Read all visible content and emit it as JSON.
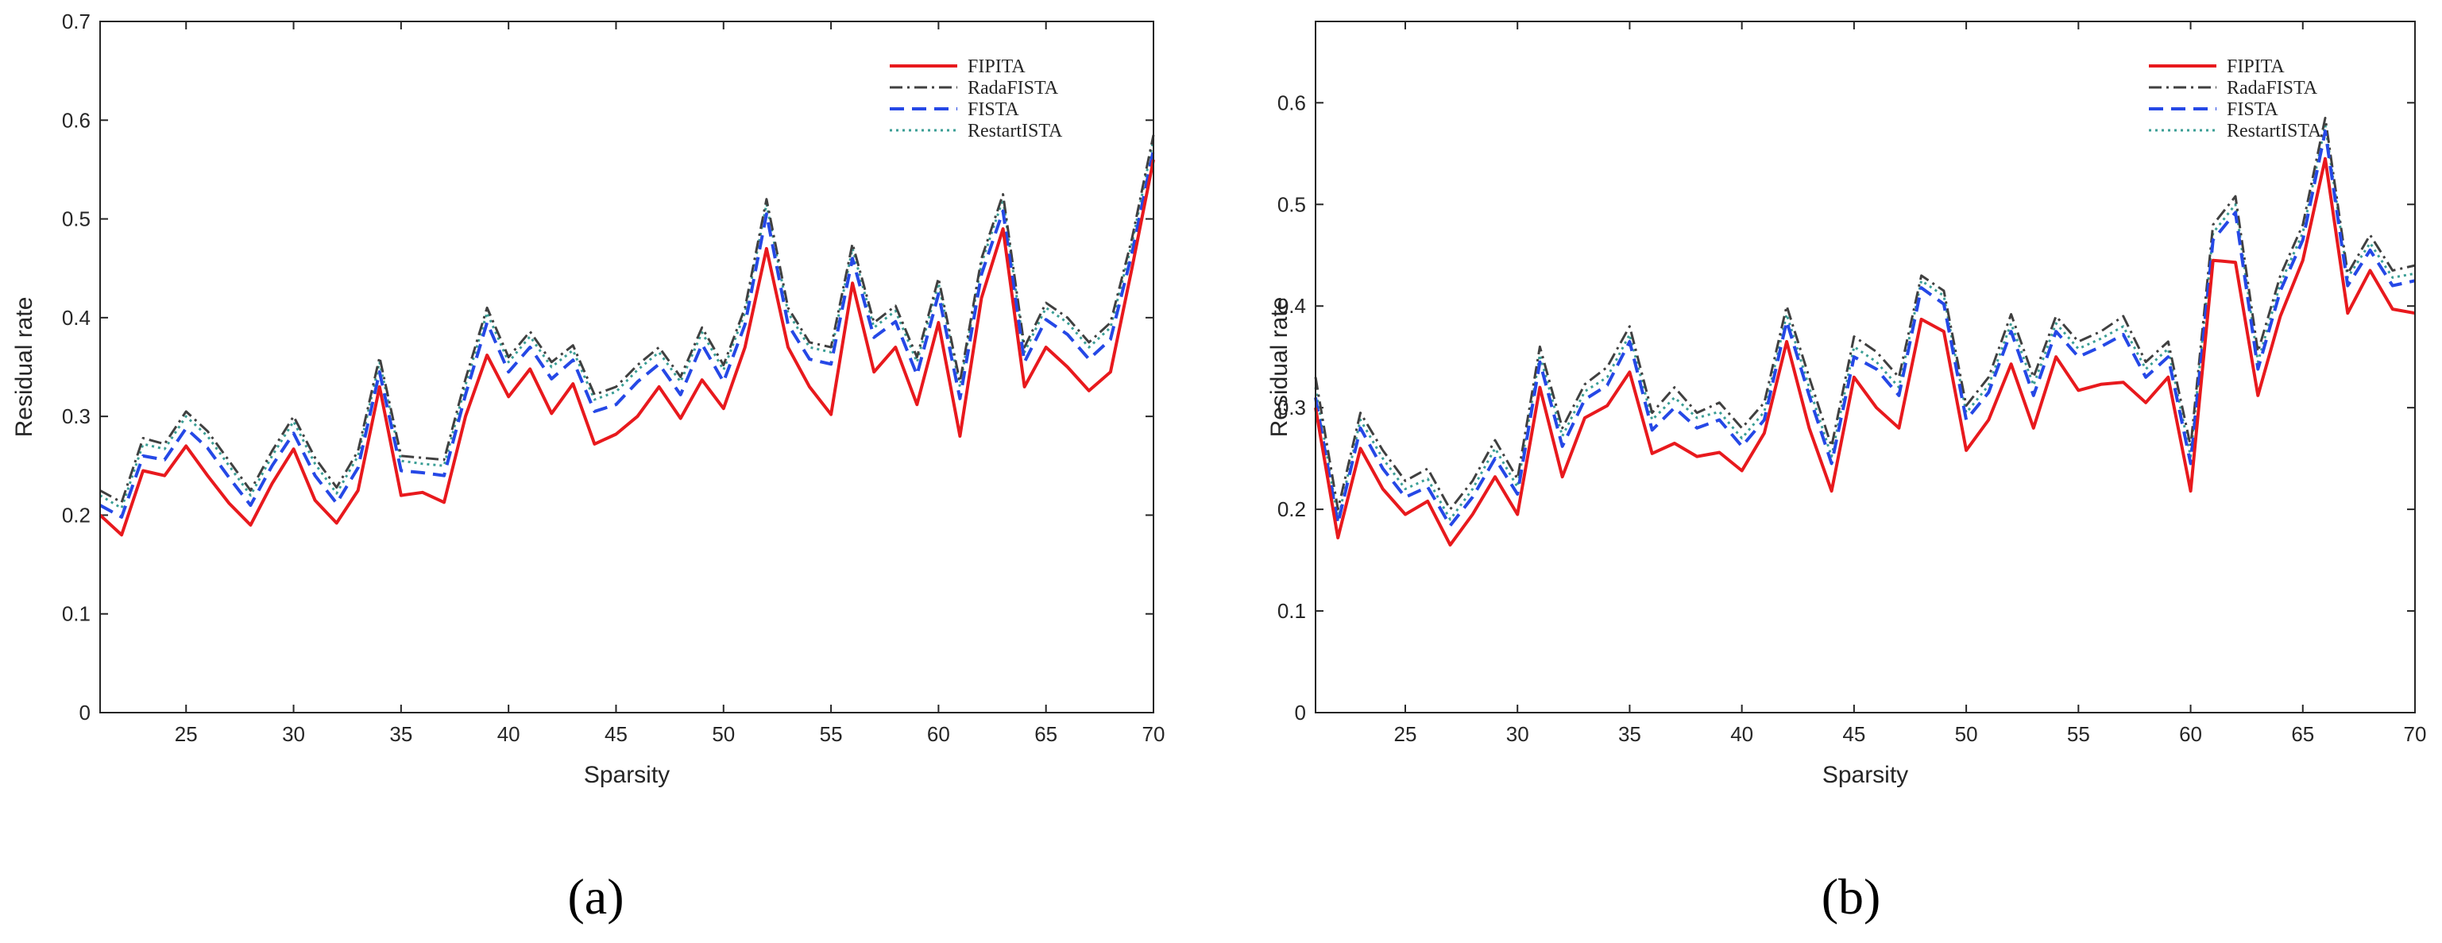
{
  "colors": {
    "FIPITA": "#e8191d",
    "RadaFISTA": "#404040",
    "FISTA": "#2548e6",
    "RestartISTA": "#3a9e95"
  },
  "chart_data": [
    {
      "type": "line",
      "caption": "(a)",
      "xlabel": "Sparsity",
      "ylabel": "Residual rate",
      "xlim": [
        21,
        70
      ],
      "ylim": [
        0,
        0.7
      ],
      "xticks": [
        25,
        30,
        35,
        40,
        45,
        50,
        55,
        60,
        65,
        70
      ],
      "yticks": [
        0,
        0.1,
        0.2,
        0.3,
        0.4,
        0.5,
        0.6,
        0.7
      ],
      "legend_position": "top-right",
      "x": [
        21,
        22,
        23,
        24,
        25,
        26,
        27,
        28,
        29,
        30,
        31,
        32,
        33,
        34,
        35,
        36,
        37,
        38,
        39,
        40,
        41,
        42,
        43,
        44,
        45,
        46,
        47,
        48,
        49,
        50,
        51,
        52,
        53,
        54,
        55,
        56,
        57,
        58,
        59,
        60,
        61,
        62,
        63,
        64,
        65,
        66,
        67,
        68,
        69,
        70
      ],
      "series": [
        {
          "name": "FIPITA",
          "style": "solid",
          "values": [
            0.2,
            0.18,
            0.245,
            0.24,
            0.27,
            0.24,
            0.212,
            0.19,
            0.232,
            0.267,
            0.215,
            0.192,
            0.225,
            0.33,
            0.22,
            0.223,
            0.213,
            0.3,
            0.362,
            0.32,
            0.348,
            0.303,
            0.333,
            0.272,
            0.282,
            0.3,
            0.33,
            0.298,
            0.337,
            0.308,
            0.37,
            0.47,
            0.37,
            0.33,
            0.302,
            0.435,
            0.345,
            0.37,
            0.312,
            0.395,
            0.28,
            0.42,
            0.49,
            0.33,
            0.37,
            0.35,
            0.326,
            0.345,
            0.45,
            0.56
          ]
        },
        {
          "name": "RadaFISTA",
          "style": "dashdot",
          "values": [
            0.225,
            0.213,
            0.278,
            0.272,
            0.305,
            0.285,
            0.255,
            0.225,
            0.265,
            0.3,
            0.258,
            0.228,
            0.265,
            0.36,
            0.26,
            0.258,
            0.256,
            0.338,
            0.41,
            0.36,
            0.386,
            0.355,
            0.372,
            0.322,
            0.33,
            0.352,
            0.37,
            0.34,
            0.39,
            0.352,
            0.41,
            0.52,
            0.41,
            0.375,
            0.37,
            0.475,
            0.395,
            0.412,
            0.36,
            0.44,
            0.335,
            0.46,
            0.525,
            0.37,
            0.415,
            0.4,
            0.375,
            0.395,
            0.48,
            0.585
          ]
        },
        {
          "name": "FISTA",
          "style": "dashed",
          "values": [
            0.21,
            0.198,
            0.26,
            0.256,
            0.288,
            0.268,
            0.238,
            0.21,
            0.25,
            0.283,
            0.24,
            0.212,
            0.248,
            0.345,
            0.245,
            0.243,
            0.24,
            0.322,
            0.395,
            0.345,
            0.37,
            0.338,
            0.357,
            0.305,
            0.312,
            0.335,
            0.353,
            0.322,
            0.373,
            0.335,
            0.393,
            0.505,
            0.393,
            0.358,
            0.353,
            0.46,
            0.38,
            0.396,
            0.342,
            0.424,
            0.318,
            0.444,
            0.508,
            0.355,
            0.398,
            0.383,
            0.358,
            0.378,
            0.465,
            0.57
          ]
        },
        {
          "name": "RestartISTA",
          "style": "dotted",
          "values": [
            0.22,
            0.207,
            0.272,
            0.267,
            0.3,
            0.28,
            0.25,
            0.22,
            0.26,
            0.295,
            0.252,
            0.222,
            0.26,
            0.355,
            0.255,
            0.252,
            0.25,
            0.332,
            0.405,
            0.355,
            0.381,
            0.35,
            0.367,
            0.317,
            0.325,
            0.347,
            0.365,
            0.335,
            0.385,
            0.347,
            0.405,
            0.515,
            0.405,
            0.37,
            0.365,
            0.47,
            0.39,
            0.407,
            0.355,
            0.435,
            0.33,
            0.455,
            0.52,
            0.365,
            0.41,
            0.395,
            0.37,
            0.39,
            0.475,
            0.58
          ]
        }
      ]
    },
    {
      "type": "line",
      "caption": "(b)",
      "xlabel": "Sparsity",
      "ylabel": "Residual rate",
      "xlim": [
        21,
        70
      ],
      "ylim": [
        0,
        0.68
      ],
      "xticks": [
        25,
        30,
        35,
        40,
        45,
        50,
        55,
        60,
        65,
        70
      ],
      "yticks": [
        0,
        0.1,
        0.2,
        0.3,
        0.4,
        0.5,
        0.6
      ],
      "legend_position": "top-right",
      "x": [
        21,
        22,
        23,
        24,
        25,
        26,
        27,
        28,
        29,
        30,
        31,
        32,
        33,
        34,
        35,
        36,
        37,
        38,
        39,
        40,
        41,
        42,
        43,
        44,
        45,
        46,
        47,
        48,
        49,
        50,
        51,
        52,
        53,
        54,
        55,
        56,
        57,
        58,
        59,
        60,
        61,
        62,
        63,
        64,
        65,
        66,
        67,
        68,
        69,
        70
      ],
      "series": [
        {
          "name": "FIPITA",
          "style": "solid",
          "values": [
            0.3,
            0.172,
            0.26,
            0.22,
            0.195,
            0.208,
            0.165,
            0.195,
            0.232,
            0.195,
            0.32,
            0.232,
            0.29,
            0.302,
            0.335,
            0.255,
            0.265,
            0.252,
            0.256,
            0.238,
            0.275,
            0.365,
            0.28,
            0.218,
            0.33,
            0.3,
            0.28,
            0.387,
            0.375,
            0.258,
            0.288,
            0.343,
            0.28,
            0.35,
            0.317,
            0.323,
            0.325,
            0.305,
            0.33,
            0.218,
            0.445,
            0.443,
            0.312,
            0.39,
            0.445,
            0.545,
            0.393,
            0.435,
            0.397,
            0.393
          ]
        },
        {
          "name": "RadaFISTA",
          "style": "dashdot",
          "values": [
            0.33,
            0.2,
            0.295,
            0.258,
            0.228,
            0.24,
            0.2,
            0.228,
            0.268,
            0.23,
            0.36,
            0.28,
            0.323,
            0.34,
            0.38,
            0.295,
            0.32,
            0.295,
            0.305,
            0.28,
            0.305,
            0.4,
            0.33,
            0.262,
            0.37,
            0.355,
            0.33,
            0.43,
            0.415,
            0.302,
            0.33,
            0.392,
            0.33,
            0.39,
            0.365,
            0.375,
            0.39,
            0.345,
            0.365,
            0.262,
            0.48,
            0.508,
            0.355,
            0.43,
            0.48,
            0.585,
            0.432,
            0.47,
            0.435,
            0.44
          ]
        },
        {
          "name": "FISTA",
          "style": "dashed",
          "values": [
            0.31,
            0.186,
            0.28,
            0.24,
            0.212,
            0.222,
            0.184,
            0.212,
            0.25,
            0.215,
            0.345,
            0.262,
            0.308,
            0.322,
            0.365,
            0.278,
            0.3,
            0.28,
            0.288,
            0.262,
            0.288,
            0.385,
            0.312,
            0.245,
            0.35,
            0.338,
            0.312,
            0.418,
            0.402,
            0.288,
            0.315,
            0.375,
            0.312,
            0.375,
            0.35,
            0.36,
            0.372,
            0.33,
            0.35,
            0.245,
            0.465,
            0.492,
            0.338,
            0.415,
            0.465,
            0.572,
            0.42,
            0.455,
            0.42,
            0.425
          ]
        },
        {
          "name": "RestartISTA",
          "style": "dotted",
          "values": [
            0.32,
            0.19,
            0.288,
            0.25,
            0.22,
            0.23,
            0.19,
            0.22,
            0.26,
            0.222,
            0.352,
            0.272,
            0.316,
            0.33,
            0.372,
            0.288,
            0.31,
            0.29,
            0.296,
            0.27,
            0.296,
            0.392,
            0.32,
            0.252,
            0.36,
            0.345,
            0.32,
            0.425,
            0.41,
            0.295,
            0.322,
            0.383,
            0.322,
            0.383,
            0.358,
            0.368,
            0.38,
            0.338,
            0.358,
            0.252,
            0.472,
            0.5,
            0.345,
            0.422,
            0.472,
            0.578,
            0.428,
            0.462,
            0.428,
            0.432
          ]
        }
      ]
    }
  ]
}
